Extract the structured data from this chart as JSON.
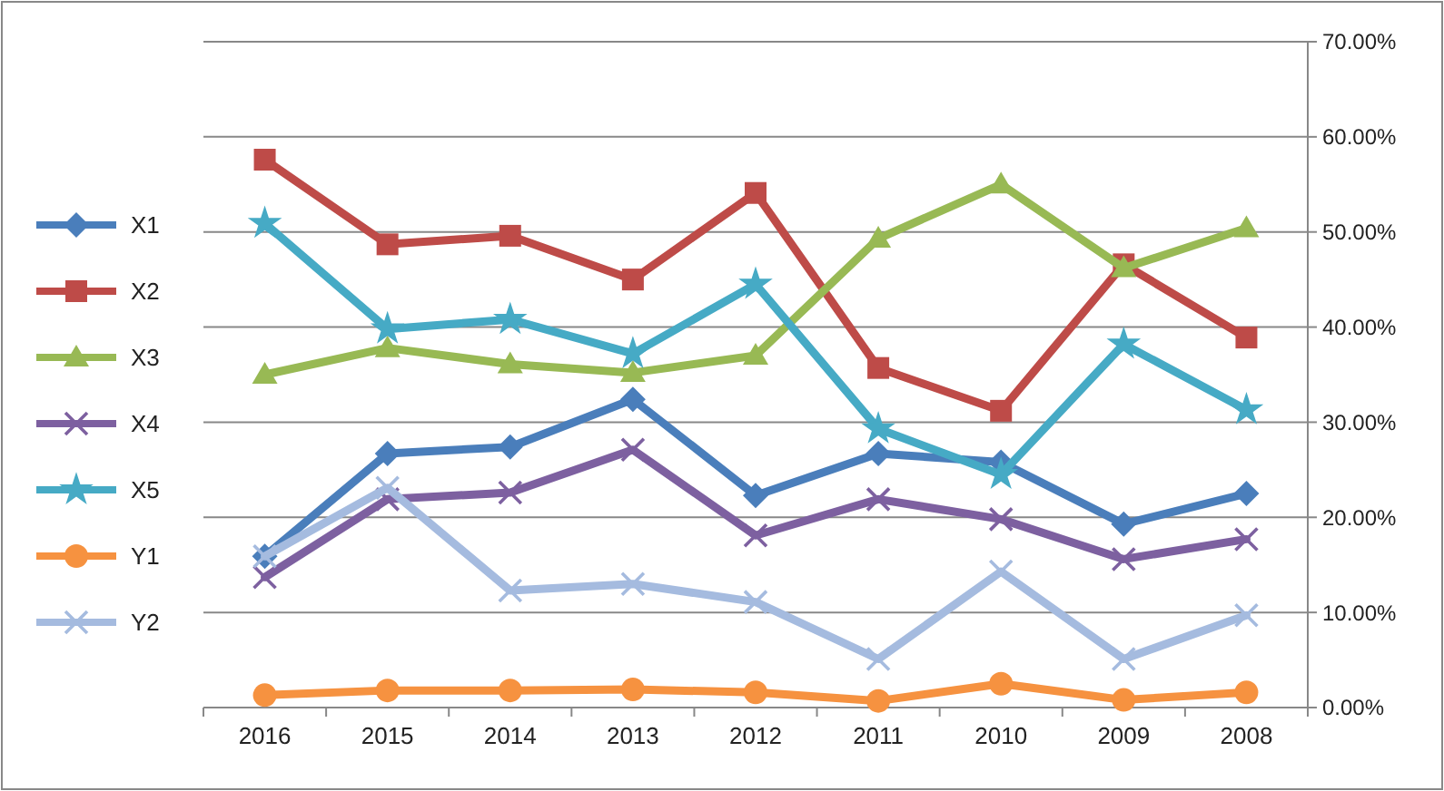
{
  "chart_data": {
    "type": "line",
    "categories": [
      "2016",
      "2015",
      "2014",
      "2013",
      "2012",
      "2011",
      "2010",
      "2009",
      "2008"
    ],
    "series": [
      {
        "name": "X1",
        "color": "#4a7ebb",
        "marker": "diamond",
        "values": [
          15.9,
          26.7,
          27.4,
          32.4,
          22.3,
          26.7,
          25.8,
          19.3,
          22.5
        ]
      },
      {
        "name": "X2",
        "color": "#be4b48",
        "marker": "square",
        "values": [
          57.6,
          48.7,
          49.6,
          45.0,
          54.1,
          35.7,
          31.2,
          46.6,
          38.9
        ]
      },
      {
        "name": "X3",
        "color": "#98b954",
        "marker": "triangle",
        "values": [
          35.0,
          37.8,
          36.1,
          35.2,
          37.0,
          49.3,
          55.0,
          46.2,
          50.4
        ]
      },
      {
        "name": "X4",
        "color": "#7d60a0",
        "marker": "cross",
        "values": [
          13.7,
          21.9,
          22.6,
          27.1,
          18.1,
          21.9,
          19.8,
          15.6,
          17.7
        ]
      },
      {
        "name": "X5",
        "color": "#46aac5",
        "marker": "star",
        "values": [
          50.9,
          39.8,
          40.8,
          37.2,
          44.5,
          29.3,
          24.5,
          38.2,
          31.3
        ]
      },
      {
        "name": "Y1",
        "color": "#f69240",
        "marker": "circle",
        "values": [
          1.3,
          1.8,
          1.8,
          1.9,
          1.6,
          0.7,
          2.5,
          0.8,
          1.6
        ]
      },
      {
        "name": "Y2",
        "color": "#a5bbdf",
        "marker": "cross",
        "values": [
          15.9,
          23.1,
          12.3,
          13.0,
          11.1,
          5.1,
          14.3,
          5.1,
          9.7
        ]
      }
    ],
    "ylim": [
      0,
      70
    ],
    "yticks": [
      {
        "value": 0,
        "label": "0.00%"
      },
      {
        "value": 10,
        "label": "10.00%"
      },
      {
        "value": 20,
        "label": "20.00%"
      },
      {
        "value": 30,
        "label": "30.00%"
      },
      {
        "value": 40,
        "label": "40.00%"
      },
      {
        "value": 50,
        "label": "50.00%"
      },
      {
        "value": 60,
        "label": "60.00%"
      },
      {
        "value": 70,
        "label": "70.00%"
      }
    ],
    "grid": "y",
    "legend": "left",
    "line_style": "solid"
  }
}
